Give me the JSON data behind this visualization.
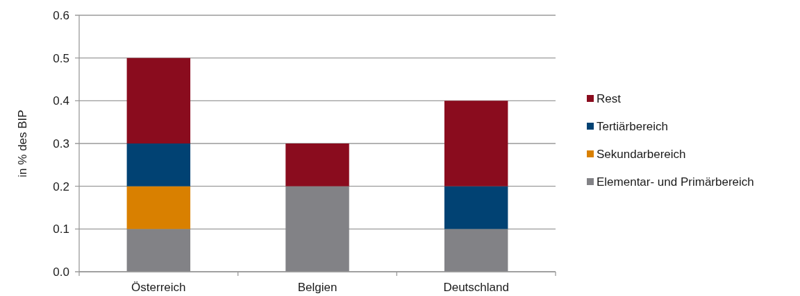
{
  "chart_data": {
    "type": "bar",
    "stacked": true,
    "ylabel": "in % des BIP",
    "categories": [
      "Österreich",
      "Belgien",
      "Deutschland"
    ],
    "series": [
      {
        "name": "Elementar- und Primärbereich",
        "color": "#828286",
        "values": [
          0.1,
          0.2,
          0.1
        ]
      },
      {
        "name": "Sekundarbereich",
        "color": "#d98000",
        "values": [
          0.1,
          null,
          null
        ]
      },
      {
        "name": "Tertiärbereich",
        "color": "#014273",
        "values": [
          0.1,
          null,
          0.1
        ]
      },
      {
        "name": "Rest",
        "color": "#8a0c1e",
        "values": [
          0.2,
          0.1,
          0.2
        ]
      }
    ],
    "ylim": [
      0,
      0.6
    ],
    "yticks": [
      {
        "value": 0,
        "label": "0.0"
      },
      0.1,
      0.2,
      0.3,
      0.4,
      0.5,
      0.6
    ],
    "grid": "y",
    "legend": "right"
  }
}
